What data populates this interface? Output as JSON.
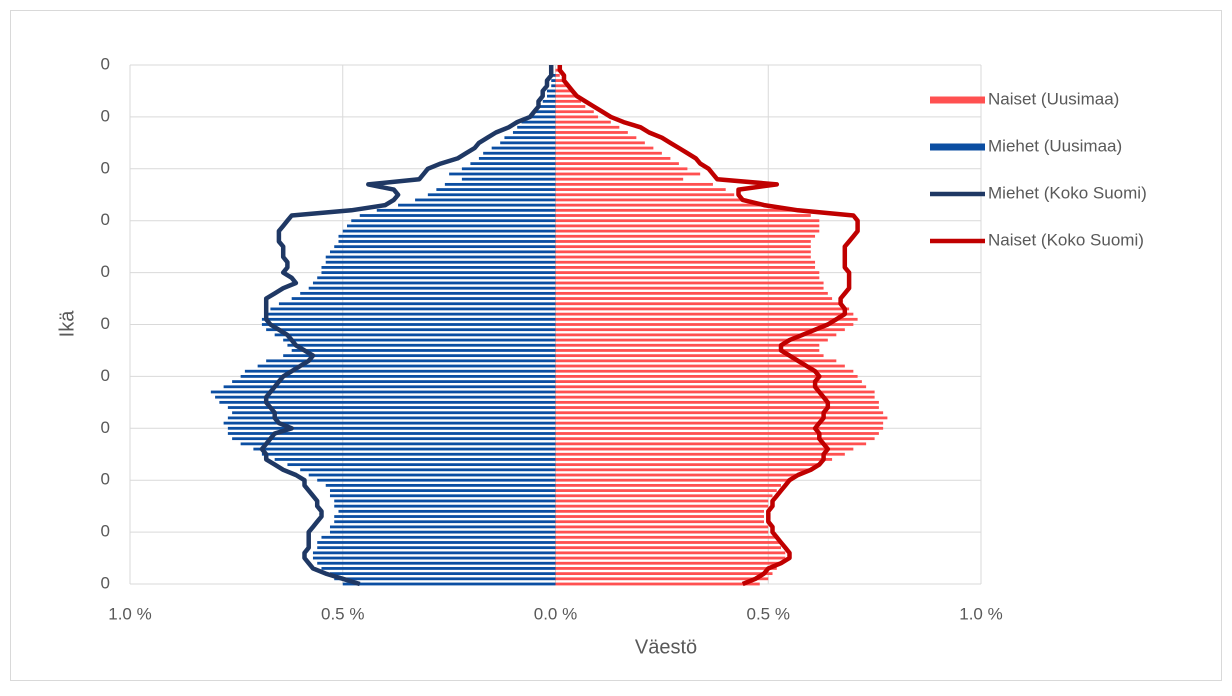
{
  "chart_data": {
    "type": "bar",
    "orientation": "horizontal",
    "xlabel": "Väestö",
    "ylabel": "Ikä",
    "xlim": [
      -1,
      1
    ],
    "xticks": [
      {
        "value": -1,
        "label": "1.0 %"
      },
      {
        "value": -0.5,
        "label": "0.5 %"
      },
      {
        "value": 0,
        "label": "0.0 %"
      },
      {
        "value": 0.5,
        "label": "0.5 %"
      },
      {
        "value": 1,
        "label": "1.0 %"
      }
    ],
    "ylim": [
      0,
      100
    ],
    "yticks": [
      0,
      {
        "value": 10,
        "label": "0"
      },
      {
        "value": 20,
        "label": "0"
      },
      {
        "value": 30,
        "label": "0"
      },
      {
        "value": 40,
        "label": "0"
      },
      {
        "value": 50,
        "label": "0"
      },
      {
        "value": 60,
        "label": "0"
      },
      {
        "value": 70,
        "label": "0"
      },
      {
        "value": 80,
        "label": "0"
      },
      {
        "value": 90,
        "label": "0"
      },
      {
        "value": 100,
        "label": "0"
      }
    ],
    "grid": true,
    "legend": "right",
    "y": [
      0,
      1,
      2,
      3,
      4,
      5,
      6,
      7,
      8,
      9,
      10,
      11,
      12,
      13,
      14,
      15,
      16,
      17,
      18,
      19,
      20,
      21,
      22,
      23,
      24,
      25,
      26,
      27,
      28,
      29,
      30,
      31,
      32,
      33,
      34,
      35,
      36,
      37,
      38,
      39,
      40,
      41,
      42,
      43,
      44,
      45,
      46,
      47,
      48,
      49,
      50,
      51,
      52,
      53,
      54,
      55,
      56,
      57,
      58,
      59,
      60,
      61,
      62,
      63,
      64,
      65,
      66,
      67,
      68,
      69,
      70,
      71,
      72,
      73,
      74,
      75,
      76,
      77,
      78,
      79,
      80,
      81,
      82,
      83,
      84,
      85,
      86,
      87,
      88,
      89,
      90,
      91,
      92,
      93,
      94,
      95,
      96,
      97,
      98,
      99,
      100
    ],
    "series": [
      {
        "name": "Naiset (Uusimaa)",
        "type": "bar",
        "color": "#ff5050",
        "values": [
          0.48,
          0.5,
          0.51,
          0.52,
          0.53,
          0.54,
          0.54,
          0.53,
          0.53,
          0.52,
          0.5,
          0.5,
          0.49,
          0.49,
          0.49,
          0.5,
          0.5,
          0.51,
          0.52,
          0.53,
          0.55,
          0.57,
          0.6,
          0.62,
          0.65,
          0.68,
          0.7,
          0.73,
          0.75,
          0.76,
          0.77,
          0.77,
          0.78,
          0.77,
          0.76,
          0.76,
          0.75,
          0.75,
          0.73,
          0.72,
          0.71,
          0.7,
          0.68,
          0.66,
          0.63,
          0.62,
          0.62,
          0.64,
          0.66,
          0.68,
          0.7,
          0.71,
          0.7,
          0.69,
          0.67,
          0.65,
          0.64,
          0.63,
          0.63,
          0.62,
          0.62,
          0.61,
          0.61,
          0.6,
          0.6,
          0.6,
          0.6,
          0.61,
          0.62,
          0.62,
          0.62,
          0.6,
          0.56,
          0.5,
          0.45,
          0.42,
          0.4,
          0.37,
          0.3,
          0.34,
          0.31,
          0.29,
          0.27,
          0.25,
          0.23,
          0.21,
          0.19,
          0.17,
          0.15,
          0.13,
          0.1,
          0.09,
          0.07,
          0.06,
          0.05,
          0.04,
          0.03,
          0.02,
          0.01,
          0.01,
          0.0
        ]
      },
      {
        "name": "Miehet (Uusimaa)",
        "type": "bar",
        "color": "#0b4ea2",
        "values": [
          -0.5,
          -0.52,
          -0.53,
          -0.55,
          -0.56,
          -0.57,
          -0.57,
          -0.56,
          -0.56,
          -0.55,
          -0.53,
          -0.53,
          -0.52,
          -0.52,
          -0.51,
          -0.52,
          -0.52,
          -0.53,
          -0.53,
          -0.54,
          -0.56,
          -0.58,
          -0.6,
          -0.63,
          -0.66,
          -0.69,
          -0.71,
          -0.74,
          -0.76,
          -0.77,
          -0.77,
          -0.78,
          -0.77,
          -0.76,
          -0.77,
          -0.79,
          -0.8,
          -0.81,
          -0.78,
          -0.76,
          -0.74,
          -0.73,
          -0.7,
          -0.68,
          -0.64,
          -0.62,
          -0.63,
          -0.64,
          -0.66,
          -0.68,
          -0.69,
          -0.69,
          -0.68,
          -0.67,
          -0.65,
          -0.62,
          -0.6,
          -0.58,
          -0.57,
          -0.56,
          -0.55,
          -0.55,
          -0.54,
          -0.54,
          -0.53,
          -0.52,
          -0.51,
          -0.51,
          -0.5,
          -0.49,
          -0.48,
          -0.46,
          -0.42,
          -0.37,
          -0.33,
          -0.3,
          -0.28,
          -0.26,
          -0.22,
          -0.25,
          -0.22,
          -0.2,
          -0.18,
          -0.17,
          -0.15,
          -0.13,
          -0.12,
          -0.1,
          -0.09,
          -0.08,
          -0.06,
          -0.05,
          -0.04,
          -0.03,
          -0.02,
          -0.02,
          -0.01,
          -0.01,
          -0.01,
          0.0,
          0.0
        ]
      },
      {
        "name": "Miehet (Koko Suomi)",
        "type": "line",
        "color": "#1f3864",
        "values": [
          -0.46,
          -0.5,
          -0.54,
          -0.57,
          -0.58,
          -0.59,
          -0.59,
          -0.58,
          -0.58,
          -0.58,
          -0.58,
          -0.57,
          -0.56,
          -0.55,
          -0.55,
          -0.56,
          -0.56,
          -0.57,
          -0.58,
          -0.59,
          -0.59,
          -0.61,
          -0.64,
          -0.66,
          -0.68,
          -0.68,
          -0.69,
          -0.68,
          -0.67,
          -0.66,
          -0.62,
          -0.65,
          -0.66,
          -0.66,
          -0.67,
          -0.68,
          -0.68,
          -0.67,
          -0.66,
          -0.65,
          -0.64,
          -0.62,
          -0.6,
          -0.58,
          -0.57,
          -0.59,
          -0.61,
          -0.62,
          -0.63,
          -0.65,
          -0.67,
          -0.68,
          -0.68,
          -0.68,
          -0.68,
          -0.68,
          -0.66,
          -0.64,
          -0.61,
          -0.62,
          -0.64,
          -0.63,
          -0.63,
          -0.64,
          -0.64,
          -0.64,
          -0.65,
          -0.65,
          -0.65,
          -0.64,
          -0.63,
          -0.62,
          -0.48,
          -0.4,
          -0.38,
          -0.37,
          -0.38,
          -0.44,
          -0.32,
          -0.31,
          -0.3,
          -0.27,
          -0.23,
          -0.21,
          -0.19,
          -0.18,
          -0.16,
          -0.14,
          -0.11,
          -0.09,
          -0.06,
          -0.05,
          -0.04,
          -0.04,
          -0.03,
          -0.03,
          -0.02,
          -0.02,
          -0.01,
          -0.01,
          -0.01
        ]
      },
      {
        "name": "Naiset (Koko Suomi)",
        "type": "line",
        "color": "#c00000",
        "values": [
          0.44,
          0.47,
          0.49,
          0.5,
          0.53,
          0.55,
          0.55,
          0.54,
          0.53,
          0.52,
          0.51,
          0.51,
          0.5,
          0.5,
          0.5,
          0.51,
          0.51,
          0.52,
          0.53,
          0.54,
          0.55,
          0.57,
          0.6,
          0.62,
          0.63,
          0.63,
          0.64,
          0.63,
          0.62,
          0.62,
          0.61,
          0.62,
          0.63,
          0.63,
          0.64,
          0.64,
          0.63,
          0.62,
          0.61,
          0.61,
          0.62,
          0.61,
          0.59,
          0.57,
          0.55,
          0.53,
          0.53,
          0.55,
          0.58,
          0.61,
          0.64,
          0.66,
          0.68,
          0.68,
          0.67,
          0.67,
          0.68,
          0.69,
          0.69,
          0.69,
          0.69,
          0.68,
          0.68,
          0.68,
          0.68,
          0.68,
          0.69,
          0.7,
          0.71,
          0.71,
          0.71,
          0.7,
          0.57,
          0.49,
          0.44,
          0.43,
          0.43,
          0.52,
          0.38,
          0.37,
          0.36,
          0.34,
          0.33,
          0.31,
          0.29,
          0.27,
          0.25,
          0.22,
          0.2,
          0.16,
          0.13,
          0.11,
          0.09,
          0.07,
          0.05,
          0.04,
          0.03,
          0.02,
          0.02,
          0.01,
          0.01
        ]
      }
    ]
  }
}
